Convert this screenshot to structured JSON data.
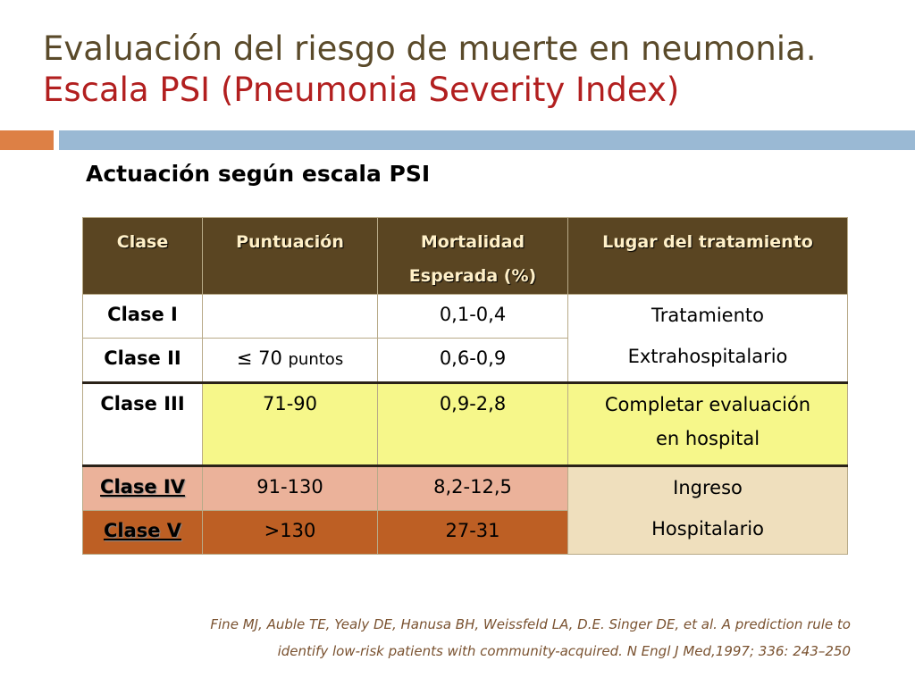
{
  "title": {
    "line1": "Evaluación del riesgo de muerte en neumonia.",
    "line2": "Escala PSI (Pneumonia Severity Index)"
  },
  "subtitle": "Actuación según escala PSI",
  "table": {
    "headers": {
      "clase": "Clase",
      "puntuacion": "Puntuación",
      "mortalidad_1": "Mortalidad",
      "mortalidad_2": "Esperada (%)",
      "lugar": "Lugar del tratamiento"
    },
    "rows": [
      {
        "clase": "Clase I",
        "puntuacion": "",
        "mortalidad": "0,1-0,4"
      },
      {
        "clase": "Clase II",
        "puntuacion_symbol": "≤",
        "puntuacion_value": "70",
        "puntuacion_unit": "puntos",
        "mortalidad": "0,6-0,9"
      },
      {
        "clase": "Clase III",
        "puntuacion": "71-90",
        "mortalidad": "0,9-2,8"
      },
      {
        "clase": "Clase IV",
        "puntuacion": "91-130",
        "mortalidad": "8,2-12,5"
      },
      {
        "clase": "Clase V",
        "puntuacion": ">130",
        "mortalidad": "27-31"
      }
    ],
    "lugar": {
      "extrahospitalario_1": "Tratamiento",
      "extrahospitalario_2": "Extrahospitalario",
      "evaluacion_1": "Completar evaluación",
      "evaluacion_2": "en hospital",
      "ingreso_1": "Ingreso",
      "ingreso_2": "Hospitalario"
    }
  },
  "citation": {
    "line1": "Fine MJ, Auble TE,  Yealy DE, Hanusa BH, Weissfeld LA, D.E. Singer DE, et al. A prediction rule to",
    "line2": "identify low-risk patients with community-acquired.  N Engl J Med,1997; 336: 243–250"
  },
  "colors": {
    "title": "#5a4a2a",
    "title_accent": "#b21f1f",
    "header_bg": "#5a4522",
    "yellow": "#f6f78a",
    "salmon": "#ebb29a",
    "rust": "#bd5f24",
    "beige": "#efdfbd",
    "accent_orange": "#dd8045",
    "accent_blue": "#9ab9d4"
  }
}
